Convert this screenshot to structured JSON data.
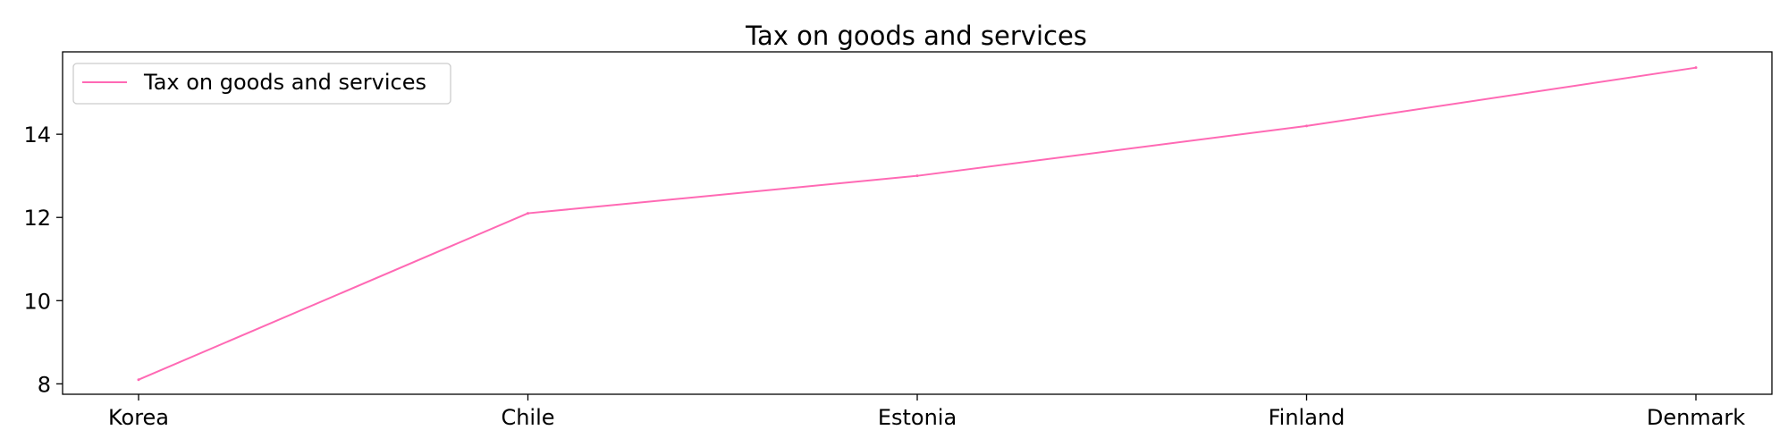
{
  "chart_data": {
    "type": "line",
    "title": "Tax on goods and services",
    "xlabel": "",
    "ylabel": "",
    "categories": [
      "Korea",
      "Chile",
      "Estonia",
      "Finland",
      "Denmark"
    ],
    "series": [
      {
        "name": "Tax on goods and services",
        "color": "#ff69b4",
        "values": [
          8.1,
          12.1,
          13.0,
          14.2,
          15.6
        ]
      }
    ],
    "ylim": [
      7.75,
      15.98
    ],
    "yticks": [
      8,
      10,
      12,
      14
    ],
    "grid": false,
    "legend_position": "top-left"
  }
}
